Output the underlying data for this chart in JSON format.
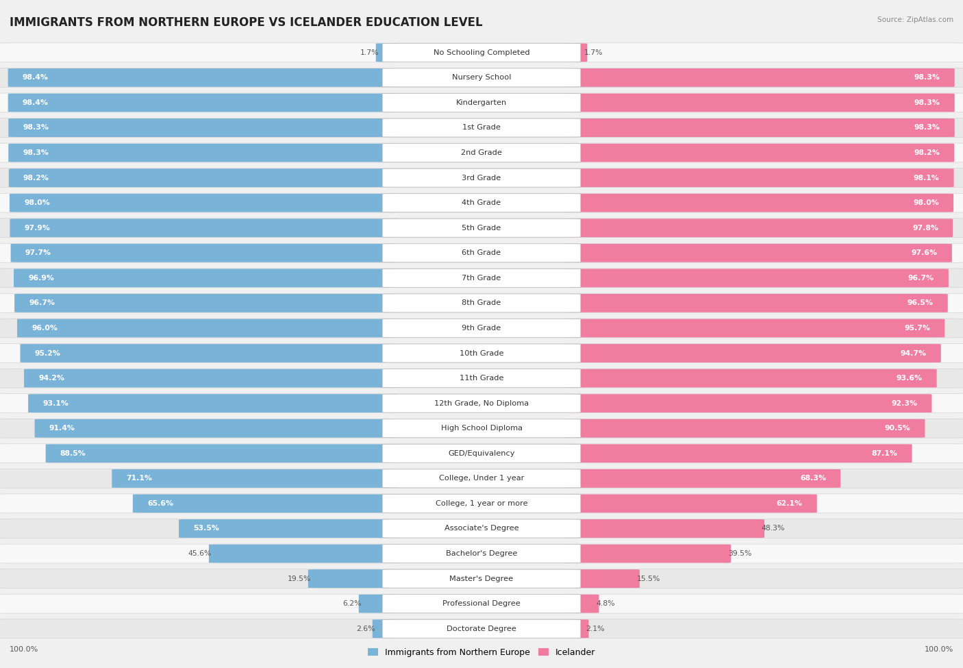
{
  "title": "IMMIGRANTS FROM NORTHERN EUROPE VS ICELANDER EDUCATION LEVEL",
  "source": "Source: ZipAtlas.com",
  "categories": [
    "No Schooling Completed",
    "Nursery School",
    "Kindergarten",
    "1st Grade",
    "2nd Grade",
    "3rd Grade",
    "4th Grade",
    "5th Grade",
    "6th Grade",
    "7th Grade",
    "8th Grade",
    "9th Grade",
    "10th Grade",
    "11th Grade",
    "12th Grade, No Diploma",
    "High School Diploma",
    "GED/Equivalency",
    "College, Under 1 year",
    "College, 1 year or more",
    "Associate's Degree",
    "Bachelor's Degree",
    "Master's Degree",
    "Professional Degree",
    "Doctorate Degree"
  ],
  "left_values": [
    1.7,
    98.4,
    98.4,
    98.3,
    98.3,
    98.2,
    98.0,
    97.9,
    97.7,
    96.9,
    96.7,
    96.0,
    95.2,
    94.2,
    93.1,
    91.4,
    88.5,
    71.1,
    65.6,
    53.5,
    45.6,
    19.5,
    6.2,
    2.6
  ],
  "right_values": [
    1.7,
    98.3,
    98.3,
    98.3,
    98.2,
    98.1,
    98.0,
    97.8,
    97.6,
    96.7,
    96.5,
    95.7,
    94.7,
    93.6,
    92.3,
    90.5,
    87.1,
    68.3,
    62.1,
    48.3,
    39.5,
    15.5,
    4.8,
    2.1
  ],
  "left_color": "#7ab3d8",
  "right_color": "#f07ca0",
  "bg_color": "#f0f0f0",
  "row_bg_odd": "#e8e8e8",
  "row_bg_even": "#f8f8f8",
  "legend_left": "Immigrants from Northern Europe",
  "legend_right": "Icelander",
  "title_fontsize": 12,
  "label_fontsize": 8.2,
  "value_fontsize": 7.8
}
